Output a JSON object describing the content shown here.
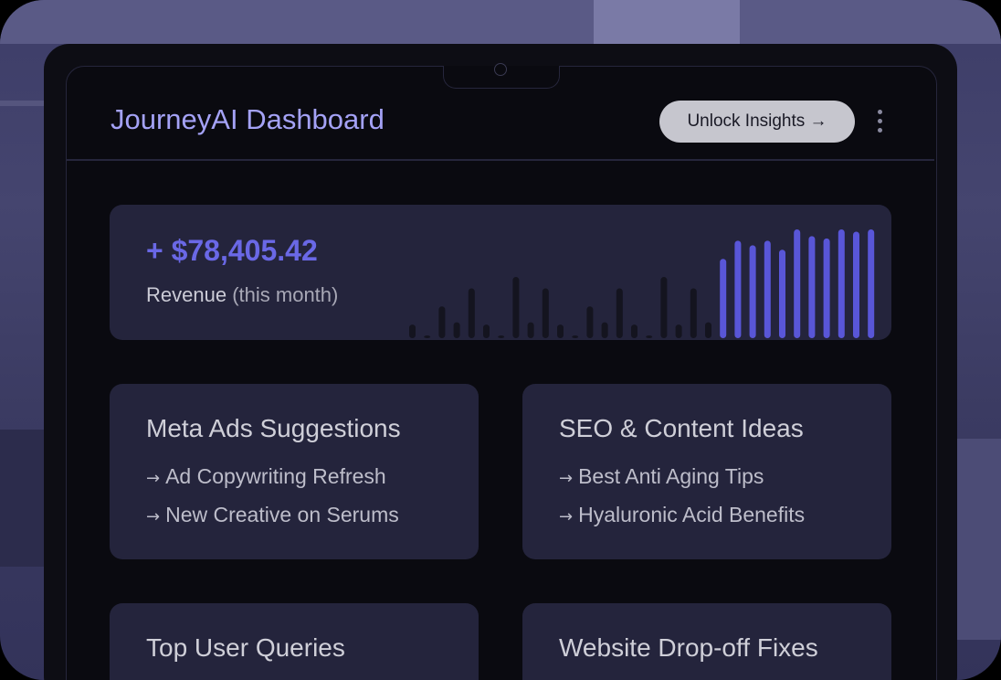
{
  "header": {
    "title": "JourneyAI Dashboard",
    "unlock_label": "Unlock Insights →"
  },
  "revenue": {
    "value": "+ $78,405.42",
    "label": "Revenue",
    "label_suffix": "(this month)",
    "chart_data": {
      "type": "bar",
      "dim_values": [
        12,
        2,
        28,
        14,
        44,
        12,
        2,
        54,
        14,
        44,
        12,
        2,
        28,
        14,
        44,
        12,
        2,
        54,
        12,
        44,
        14
      ],
      "highlight_values": [
        70,
        86,
        82,
        86,
        78,
        96,
        90,
        88,
        96,
        94,
        96
      ],
      "dim_color": "#14141f",
      "highlight_color": "#5956d8"
    }
  },
  "cards": [
    {
      "title": "Meta Ads Suggestions",
      "items": [
        "Ad Copywriting Refresh",
        "New Creative on Serums"
      ]
    },
    {
      "title": "SEO & Content Ideas",
      "items": [
        "Best Anti Aging Tips",
        "Hyaluronic Acid Benefits"
      ]
    },
    {
      "title": "Top User Queries",
      "items": []
    },
    {
      "title": "Website Drop-off Fixes",
      "items": []
    }
  ],
  "icons": {
    "arrow": "arrow-right-icon",
    "menu": "more-vertical-icon"
  }
}
